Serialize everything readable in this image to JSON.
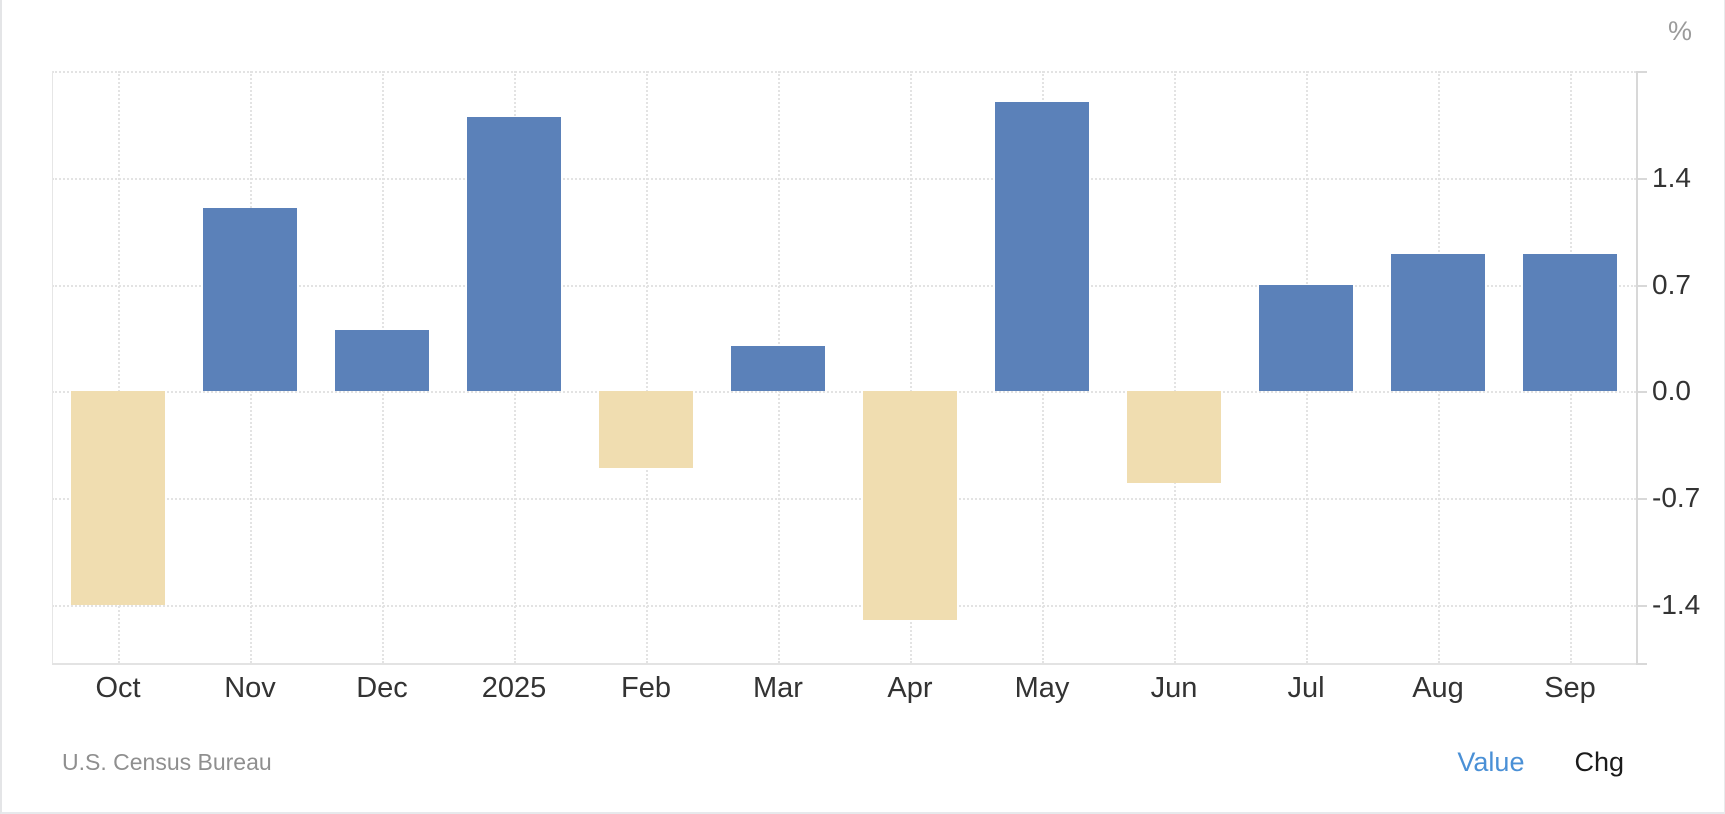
{
  "chart_data": {
    "type": "bar",
    "title": "",
    "unit_label": "%",
    "categories": [
      "Oct",
      "Nov",
      "Dec",
      "2025",
      "Feb",
      "Mar",
      "Apr",
      "May",
      "Jun",
      "Jul",
      "Aug",
      "Sep"
    ],
    "values": [
      -1.4,
      1.2,
      0.4,
      1.8,
      -0.5,
      0.3,
      -1.5,
      1.9,
      -0.6,
      0.7,
      0.9,
      0.9
    ],
    "ylim": [
      -1.78,
      2.1
    ],
    "yticks": [
      1.4,
      0.7,
      0.0,
      -0.7,
      -1.4
    ],
    "ytick_labels": [
      "1.4",
      "0.7",
      "0.0",
      "-0.7",
      "-1.4"
    ],
    "grid": "dotted",
    "legend_position": "none",
    "positive_color": "#5b81b9",
    "negative_color": "#f0ddb0",
    "grid_color": "#e3e3e3",
    "axis_line_color": "#d8d8d8",
    "tick_label_color": "#333333",
    "unit_label_color": "#9b9b9b"
  },
  "footer": {
    "source": "U.S. Census Bureau",
    "source_color": "#8f8f8f",
    "toggles": {
      "value": {
        "label": "Value",
        "color": "#4a90d6"
      },
      "chg": {
        "label": "Chg",
        "color": "#1b1b1b"
      }
    }
  }
}
